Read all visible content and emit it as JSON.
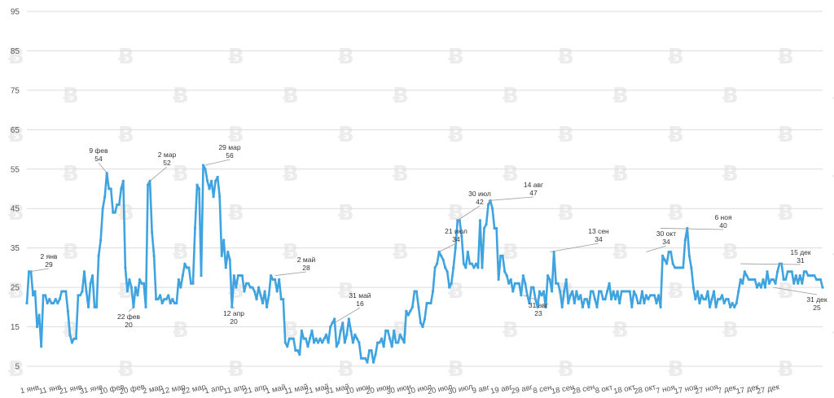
{
  "chart_data": {
    "type": "line",
    "title": "",
    "xlabel": "",
    "ylabel": "",
    "ylim": [
      5,
      95
    ],
    "grid": true,
    "y_ticks": [
      5,
      15,
      25,
      35,
      45,
      55,
      65,
      75,
      85,
      95
    ],
    "x_tick_labels": [
      "1 янв",
      "11 янв",
      "21 янв",
      "31 янв",
      "10 фев",
      "20 фев",
      "2 мар",
      "12 мар",
      "22 мар",
      "1 апр",
      "11 апр",
      "21 апр",
      "1 май",
      "11 май",
      "21 май",
      "31 май",
      "10 июн",
      "20 июн",
      "30 июн",
      "10 июл",
      "20 июл",
      "30 июл",
      "9 авг",
      "19 авг",
      "29 авг",
      "8 сен",
      "18 сен",
      "28 сен",
      "8 окт",
      "18 окт",
      "28 окт",
      "7 ноя",
      "17 ноя",
      "27 ноя",
      "7 дек",
      "17 дек",
      "27 дек"
    ],
    "series": [
      {
        "name": "Индекс",
        "color": "#3fa3e0",
        "values": [
          21,
          29,
          29,
          23,
          24,
          15,
          18,
          10,
          23,
          23,
          21,
          22,
          21,
          21,
          22,
          21,
          22,
          24,
          24,
          24,
          19,
          13,
          11,
          12,
          12,
          23,
          23,
          24,
          29,
          24,
          20,
          26,
          28,
          20,
          20,
          33,
          37,
          45,
          48,
          54,
          50,
          50,
          44,
          44,
          46,
          46,
          50,
          52,
          30,
          24,
          27,
          25,
          20,
          25,
          23,
          27,
          26,
          26,
          20,
          51,
          52,
          39,
          33,
          22,
          22,
          23,
          21,
          22,
          22,
          23,
          21,
          22,
          21,
          21,
          27,
          25,
          28,
          31,
          30,
          30,
          26,
          26,
          40,
          51,
          50,
          28,
          56,
          55,
          52,
          50,
          52,
          48,
          52,
          53,
          48,
          33,
          37,
          30,
          34,
          32,
          20,
          28,
          25,
          28,
          28,
          28,
          24,
          26,
          26,
          25,
          25,
          24,
          22,
          25,
          23,
          21,
          24,
          20,
          23,
          28,
          27,
          27,
          24,
          27,
          22,
          22,
          11,
          10,
          12,
          12,
          12,
          9,
          9,
          8,
          14,
          12,
          12,
          10,
          12,
          14,
          11,
          12,
          11,
          12,
          11,
          12,
          13,
          11,
          15,
          16,
          17,
          10,
          11,
          14,
          16,
          11,
          13,
          17,
          14,
          11,
          13,
          12,
          11,
          7,
          7,
          7,
          6,
          9,
          9,
          6,
          8,
          11,
          11,
          12,
          10,
          14,
          14,
          12,
          10,
          14,
          11,
          11,
          13,
          12,
          11,
          19,
          18,
          19,
          20,
          24,
          24,
          20,
          16,
          15,
          17,
          21,
          21,
          21,
          24,
          30,
          31,
          34,
          33,
          32,
          30,
          29,
          25,
          26,
          30,
          35,
          42,
          42,
          38,
          31,
          30,
          34,
          31,
          31,
          30,
          31,
          30,
          42,
          30,
          40,
          41,
          46,
          47,
          45,
          40,
          40,
          27,
          33,
          33,
          29,
          28,
          26,
          27,
          24,
          26,
          26,
          26,
          23,
          28,
          26,
          23,
          21,
          25,
          25,
          22,
          20,
          24,
          23,
          24,
          20,
          28,
          27,
          24,
          34,
          26,
          26,
          24,
          20,
          24,
          27,
          21,
          23,
          24,
          21,
          24,
          22,
          23,
          20,
          22,
          22,
          20,
          24,
          24,
          22,
          20,
          24,
          24,
          22,
          22,
          24,
          26,
          22,
          24,
          22,
          24,
          21,
          24,
          24,
          24,
          24,
          24,
          20,
          24,
          23,
          21,
          21,
          24,
          21,
          23,
          22,
          23,
          23,
          23,
          21,
          23,
          20,
          33,
          32,
          31,
          34,
          34,
          31,
          30,
          30,
          30,
          30,
          30,
          37,
          40,
          33,
          30,
          25,
          22,
          24,
          21,
          23,
          22,
          22,
          24,
          20,
          22,
          24,
          20,
          22,
          22,
          23,
          21,
          22,
          22,
          20,
          21,
          20,
          21,
          24,
          27,
          26,
          29,
          28,
          27,
          27,
          27,
          27,
          25,
          26,
          25,
          27,
          25,
          29,
          26,
          27,
          27,
          26,
          29,
          31,
          31,
          27,
          27,
          29,
          29,
          29,
          26,
          28,
          26,
          28,
          26,
          29,
          29,
          28,
          28,
          28,
          28,
          27,
          27,
          27,
          25
        ]
      }
    ],
    "annotations": [
      {
        "date": "2 янв",
        "value": 29,
        "label_date": "2 янв",
        "label_value": "29"
      },
      {
        "date": "9 фев",
        "value": 54,
        "label_date": "9 фев",
        "label_value": "54"
      },
      {
        "date": "22 фев",
        "value": 20,
        "label_date": "22 фев",
        "label_value": "20"
      },
      {
        "date": "2 мар",
        "value": 52,
        "label_date": "2 мар",
        "label_value": "52"
      },
      {
        "date": "29 мар",
        "value": 56,
        "label_date": "29 мар",
        "label_value": "56"
      },
      {
        "date": "12 апр",
        "value": 20,
        "label_date": "12 апр",
        "label_value": "20"
      },
      {
        "date": "2 май",
        "value": 28,
        "label_date": "2 май",
        "label_value": "28"
      },
      {
        "date": "31 май",
        "value": 16,
        "label_date": "31 май",
        "label_value": "16"
      },
      {
        "date": "21 июл",
        "value": 34,
        "label_date": "21 июл",
        "label_value": "34"
      },
      {
        "date": "30 июл",
        "value": 42,
        "label_date": "30 июл",
        "label_value": "42"
      },
      {
        "date": "14 авг",
        "value": 47,
        "label_date": "14 авг",
        "label_value": "47"
      },
      {
        "date": "31 авг",
        "value": 23,
        "label_date": "31 авг",
        "label_value": "23"
      },
      {
        "date": "13 сен",
        "value": 34,
        "label_date": "13 сен",
        "label_value": "34"
      },
      {
        "date": "30 окт",
        "value": 34,
        "label_date": "30 окт",
        "label_value": "34"
      },
      {
        "date": "6 ноя",
        "value": 40,
        "label_date": "6 ноя",
        "label_value": "40"
      },
      {
        "date": "15 дек",
        "value": 31,
        "label_date": "15 дек",
        "label_value": "31"
      },
      {
        "date": "31 дек",
        "value": 25,
        "label_date": "31 дек",
        "label_value": "25"
      }
    ]
  }
}
